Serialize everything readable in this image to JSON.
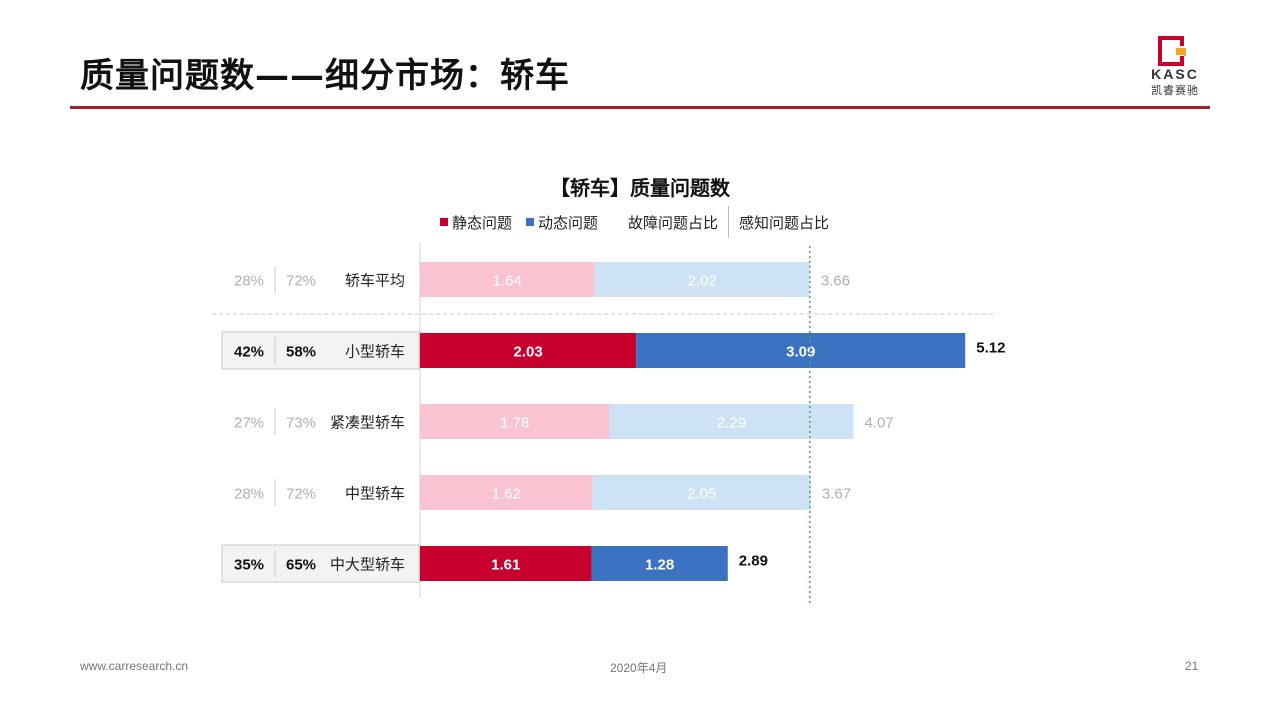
{
  "page": {
    "title": "质量问题数——细分市场：轿车",
    "logo_text": "KASC",
    "logo_sub": "凯睿赛驰",
    "footer_url": "www.carresearch.cn",
    "footer_date": "2020年4月",
    "page_number": "21"
  },
  "colors": {
    "accent": "#a31d2d",
    "static_strong": "#c8002d",
    "dynamic_strong": "#3b73c2",
    "static_light": "#fac3d1",
    "dynamic_light": "#cde2f5",
    "reference_line": "#4caf50"
  },
  "chart_data": {
    "type": "bar",
    "orientation": "horizontal",
    "stacked": true,
    "title": "【轿车】质量问题数",
    "legend": {
      "placement": "top",
      "items": [
        "静态问题",
        "动态问题"
      ],
      "extra_labels": [
        "故障问题占比",
        "感知问题占比"
      ]
    },
    "categories": [
      "轿车平均",
      "小型轿车",
      "紧凑型轿车",
      "中型轿车",
      "中大型轿车"
    ],
    "series": [
      {
        "name": "静态问题",
        "values": [
          1.64,
          2.03,
          1.78,
          1.62,
          1.61
        ]
      },
      {
        "name": "动态问题",
        "values": [
          2.02,
          3.09,
          2.29,
          2.05,
          1.28
        ]
      }
    ],
    "totals": [
      "3.66",
      "5.12",
      "4.07",
      "3.67",
      "2.89"
    ],
    "fault_share": [
      "28%",
      "42%",
      "27%",
      "28%",
      "35%"
    ],
    "perception_share": [
      "72%",
      "58%",
      "73%",
      "72%",
      "65%"
    ],
    "highlighted": [
      false,
      true,
      false,
      false,
      true
    ],
    "reference_value": 3.66,
    "xlim": [
      0,
      6
    ]
  }
}
